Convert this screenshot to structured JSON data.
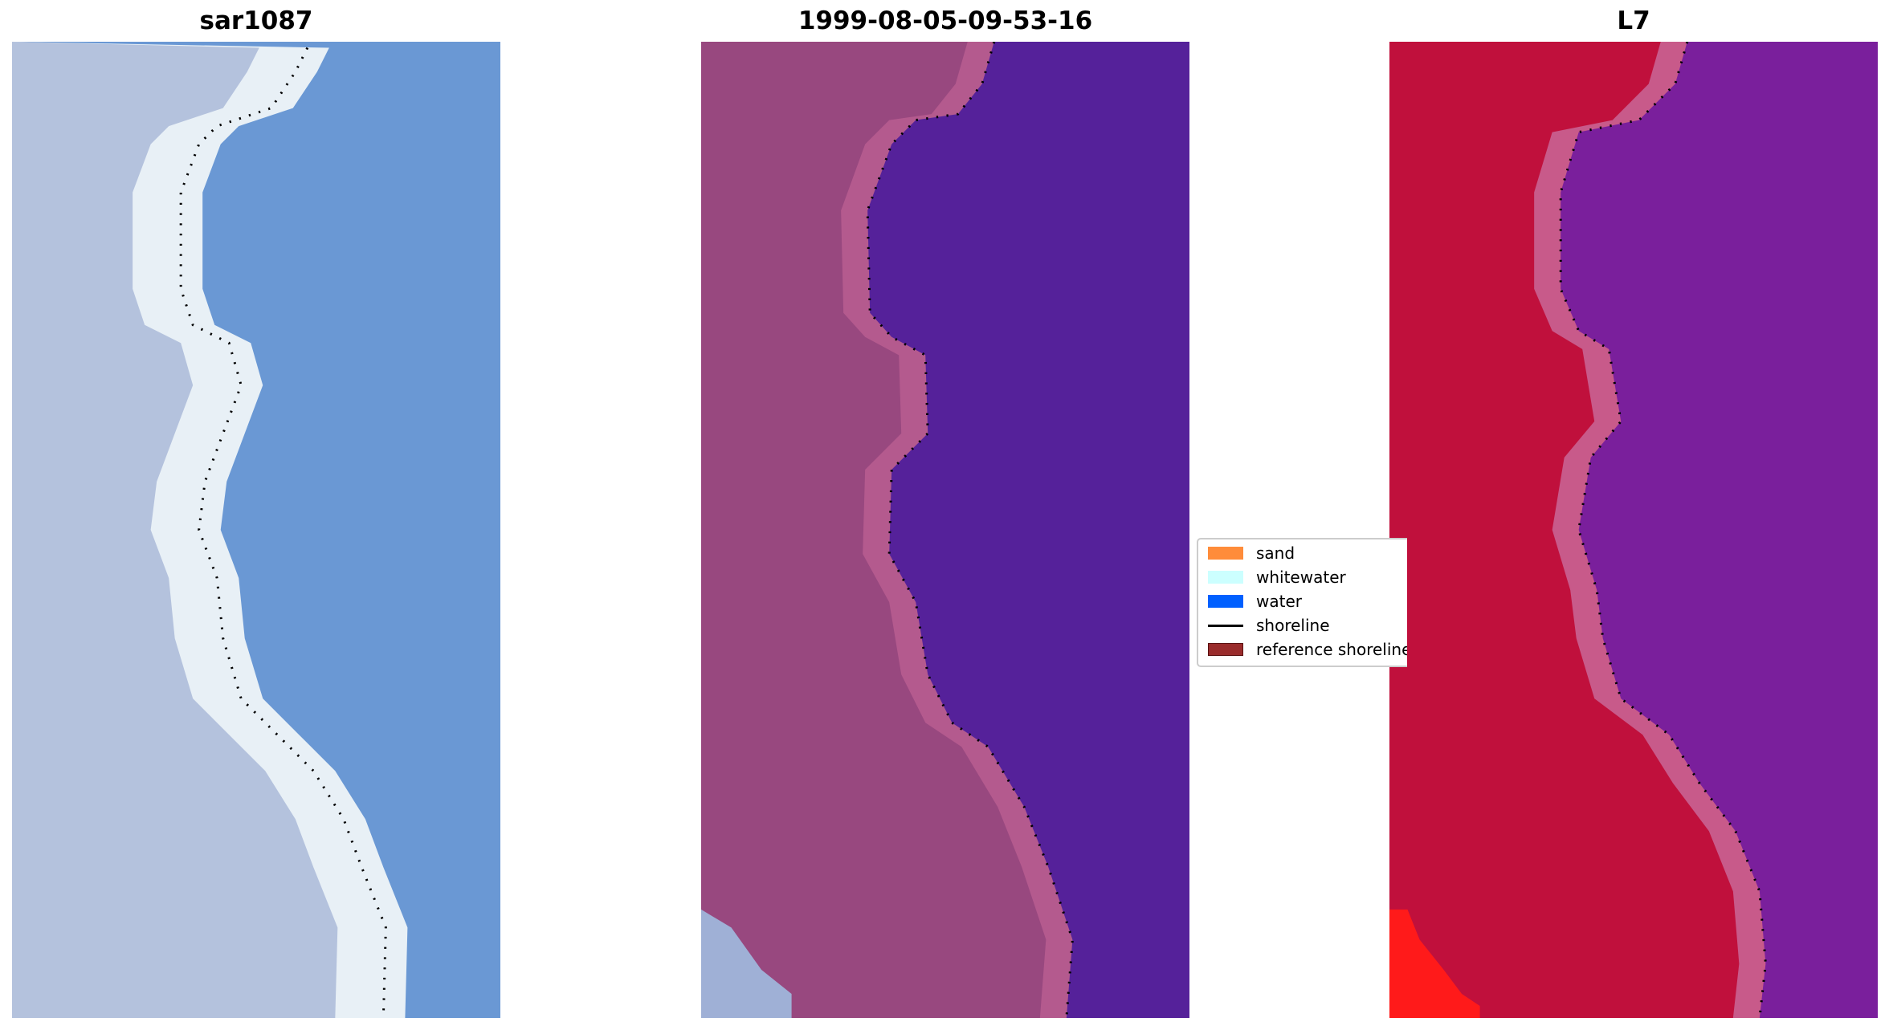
{
  "panels": [
    {
      "title": "sar1087",
      "land_color": "#b4c2dd",
      "surf_color": "#e8f0f6",
      "water_color": "#6a98d4"
    },
    {
      "title": "1999-08-05-09-53-16",
      "land_color": "#98487f",
      "surf_color": "#b45a8e",
      "water_color": "#55219a"
    },
    {
      "title": "L7",
      "land_color": "#c0103c",
      "surf_color": "#c85a8a",
      "water_color": "#7a1f9c"
    }
  ],
  "legend": {
    "items": [
      {
        "label": "sand",
        "color": "#ff8c3a",
        "kind": "patch"
      },
      {
        "label": "whitewater",
        "color": "#ccffff",
        "kind": "patch"
      },
      {
        "label": "water",
        "color": "#0060ff",
        "kind": "patch"
      },
      {
        "label": "shoreline",
        "color": "#000000",
        "kind": "line"
      },
      {
        "label": "reference shoreline",
        "color": "#9a2c2c",
        "kind": "patch"
      }
    ]
  }
}
